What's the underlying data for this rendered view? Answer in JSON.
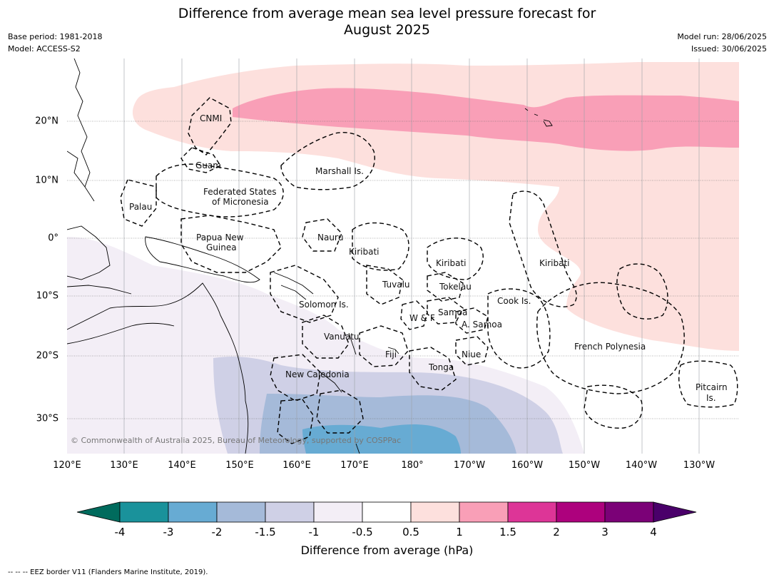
{
  "header": {
    "title_line1": "Difference from average mean sea level pressure forecast for",
    "title_line2": "August 2025",
    "base_period": "Base period: 1981-2018",
    "model": "Model: ACCESS-S2",
    "model_run": "Model run: 28/06/2025",
    "issued": "Issued: 30/06/2025"
  },
  "map": {
    "lat_labels": [
      "20°N",
      "10°N",
      "0°",
      "10°S",
      "20°S",
      "30°S"
    ],
    "lon_labels": [
      "120°E",
      "130°E",
      "140°E",
      "150°E",
      "160°E",
      "170°E",
      "180°",
      "170°W",
      "160°W",
      "150°W",
      "140°W",
      "130°W"
    ],
    "places": {
      "cnmi": "CNMI",
      "guam": "Guam",
      "marshall": "Marshall Is.",
      "fsm_1": "Federated States",
      "fsm_2": "of Micronesia",
      "palau": "Palau",
      "png_1": "Papua New",
      "png_2": "Guinea",
      "nauru": "Nauru",
      "kiribati_1": "Kiribati",
      "kiribati_2": "Kiribati",
      "kiribati_3": "Kiribati",
      "tuvalu": "Tuvalu",
      "tokelau": "Tokelau",
      "cook": "Cook Is.",
      "solomon": "Solomon Is.",
      "wf": "W & F",
      "samoa": "Samoa",
      "asamoa": "A. Samoa",
      "vanuatu": "Vanuatu",
      "fiji": "Fiji",
      "niue": "Niue",
      "tonga": "Tonga",
      "newcal": "New Caledonia",
      "frenchpoly": "French Polynesia",
      "pitcairn_1": "Pitcairn",
      "pitcairn_2": "Is."
    },
    "copyright": "© Commonwealth of Australia 2025, Bureau of Meteorology, supported by COSPPac"
  },
  "colorbar": {
    "ticks": [
      "-4",
      "-3",
      "-2",
      "-1.5",
      "-1",
      "-0.5",
      "0.5",
      "1",
      "1.5",
      "2",
      "3",
      "4"
    ],
    "colors": {
      "lt_-4": "#006b5d",
      "-4_-3": "#1a929b",
      "-3_-2": "#67abd3",
      "-2_-1.5": "#a5bad9",
      "-1.5_-1": "#cfd0e6",
      "-1_-0.5": "#f3eef6",
      "-0.5_0.5": "#ffffff",
      "0.5_1": "#fde0dd",
      "1_1.5": "#f99fb7",
      "1.5_2": "#dd3597",
      "2_3": "#ad017d",
      "3_4": "#7b0177",
      "gt_4": "#4a006a"
    },
    "label": "Difference from average (hPa)"
  },
  "footer": {
    "legend": "--  --  -- EEZ border V11 (Flanders Marine Institute, 2019)."
  }
}
